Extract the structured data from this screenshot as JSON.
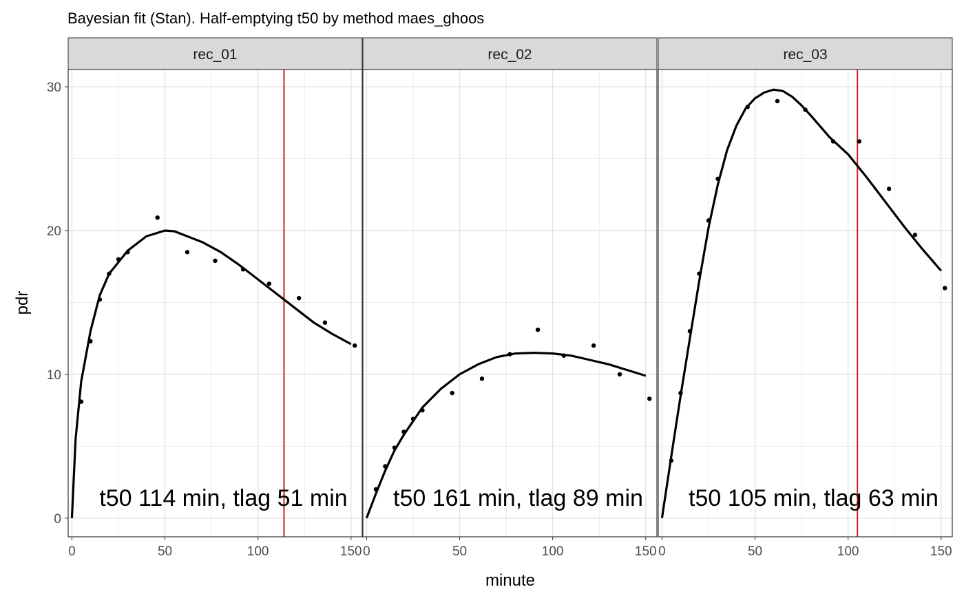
{
  "chart_data": {
    "type": "scatter",
    "title": "Bayesian fit (Stan). Half-emptying t50 by method maes_ghoos",
    "xlabel": "minute",
    "ylabel": "pdr",
    "xlim": [
      -2,
      156
    ],
    "ylim": [
      -1.3,
      31.2
    ],
    "x_ticks": [
      0,
      50,
      100,
      150
    ],
    "y_ticks": [
      0,
      10,
      20,
      30
    ],
    "grid": true,
    "colors": {
      "points": "#000000",
      "fit": "#000000",
      "t50_line": "#cc2020",
      "strip": "#d9d9d9",
      "grid": "#ebebeb"
    },
    "panels": [
      {
        "label": "rec_01",
        "annotation": "t50 114 min,  tlag 51 min",
        "t50": 114,
        "points": [
          [
            5,
            8.1
          ],
          [
            10,
            12.3
          ],
          [
            15,
            15.2
          ],
          [
            20,
            17.0
          ],
          [
            25,
            18.0
          ],
          [
            30,
            18.5
          ],
          [
            46,
            20.9
          ],
          [
            62,
            18.5
          ],
          [
            77,
            17.9
          ],
          [
            92,
            17.3
          ],
          [
            106,
            16.3
          ],
          [
            122,
            15.3
          ],
          [
            136,
            13.6
          ],
          [
            152,
            12.0
          ]
        ],
        "fit": [
          [
            0,
            0
          ],
          [
            2,
            5.5
          ],
          [
            5,
            9.5
          ],
          [
            10,
            13.0
          ],
          [
            15,
            15.5
          ],
          [
            20,
            17.0
          ],
          [
            30,
            18.6
          ],
          [
            40,
            19.6
          ],
          [
            50,
            20.0
          ],
          [
            55,
            19.95
          ],
          [
            60,
            19.7
          ],
          [
            70,
            19.2
          ],
          [
            80,
            18.5
          ],
          [
            90,
            17.6
          ],
          [
            100,
            16.6
          ],
          [
            110,
            15.6
          ],
          [
            120,
            14.6
          ],
          [
            130,
            13.6
          ],
          [
            140,
            12.8
          ],
          [
            150,
            12.1
          ]
        ]
      },
      {
        "label": "rec_02",
        "annotation": "t50 161 min,  tlag 89 min",
        "t50": 161,
        "points": [
          [
            5,
            2.0
          ],
          [
            10,
            3.6
          ],
          [
            15,
            4.9
          ],
          [
            20,
            6.0
          ],
          [
            25,
            6.9
          ],
          [
            30,
            7.5
          ],
          [
            46,
            8.7
          ],
          [
            62,
            9.7
          ],
          [
            77,
            11.4
          ],
          [
            92,
            13.1
          ],
          [
            106,
            11.3
          ],
          [
            122,
            12.0
          ],
          [
            136,
            10.0
          ],
          [
            152,
            8.3
          ]
        ],
        "fit": [
          [
            0,
            0
          ],
          [
            5,
            1.7
          ],
          [
            10,
            3.3
          ],
          [
            15,
            4.7
          ],
          [
            20,
            5.8
          ],
          [
            30,
            7.7
          ],
          [
            40,
            9.0
          ],
          [
            50,
            10.0
          ],
          [
            60,
            10.7
          ],
          [
            70,
            11.2
          ],
          [
            80,
            11.45
          ],
          [
            90,
            11.5
          ],
          [
            100,
            11.45
          ],
          [
            110,
            11.3
          ],
          [
            120,
            11.0
          ],
          [
            130,
            10.7
          ],
          [
            140,
            10.3
          ],
          [
            150,
            9.9
          ]
        ]
      },
      {
        "label": "rec_03",
        "annotation": "t50 105 min,  tlag 63 min",
        "t50": 105,
        "points": [
          [
            5,
            4.0
          ],
          [
            10,
            8.7
          ],
          [
            15,
            13.0
          ],
          [
            20,
            17.0
          ],
          [
            25,
            20.7
          ],
          [
            30,
            23.6
          ],
          [
            46,
            28.6
          ],
          [
            62,
            29.0
          ],
          [
            77,
            28.4
          ],
          [
            92,
            26.2
          ],
          [
            106,
            26.2
          ],
          [
            122,
            22.9
          ],
          [
            136,
            19.7
          ],
          [
            152,
            16.0
          ]
        ],
        "fit": [
          [
            0,
            0
          ],
          [
            5,
            4.3
          ],
          [
            10,
            8.5
          ],
          [
            15,
            12.5
          ],
          [
            20,
            16.5
          ],
          [
            25,
            20.2
          ],
          [
            30,
            23.2
          ],
          [
            35,
            25.6
          ],
          [
            40,
            27.3
          ],
          [
            45,
            28.5
          ],
          [
            50,
            29.2
          ],
          [
            55,
            29.6
          ],
          [
            60,
            29.8
          ],
          [
            65,
            29.7
          ],
          [
            70,
            29.3
          ],
          [
            75,
            28.7
          ],
          [
            80,
            28.0
          ],
          [
            90,
            26.5
          ],
          [
            100,
            25.3
          ],
          [
            110,
            23.7
          ],
          [
            120,
            22.0
          ],
          [
            130,
            20.3
          ],
          [
            140,
            18.7
          ],
          [
            150,
            17.2
          ]
        ]
      }
    ]
  }
}
